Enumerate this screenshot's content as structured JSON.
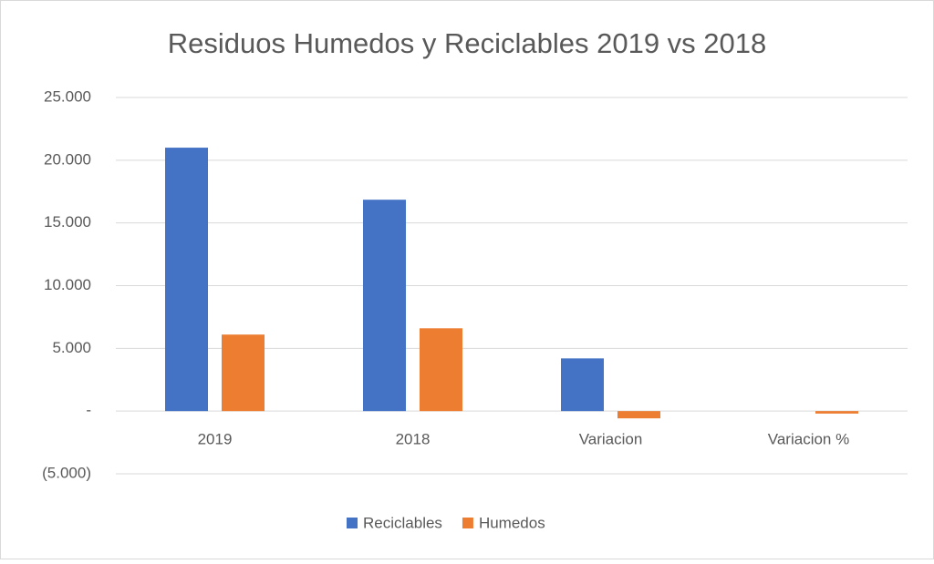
{
  "chart_data": {
    "type": "bar",
    "title": "Residuos Humedos y Reciclables 2019 vs 2018",
    "categories": [
      "2019",
      "2018",
      "Variacion",
      "Variacion %"
    ],
    "series": [
      {
        "name": "Reciclables",
        "color": "#4472c4",
        "values": [
          21000,
          16850,
          4200,
          0
        ]
      },
      {
        "name": "Humedos",
        "color": "#ed7d31",
        "values": [
          6100,
          6600,
          -580,
          -200
        ]
      }
    ],
    "ylim": [
      -5000,
      25000
    ],
    "yticks": [
      {
        "value": -5000,
        "label": "(5.000)"
      },
      {
        "value": 0,
        "label": "-"
      },
      {
        "value": 5000,
        "label": "5.000"
      },
      {
        "value": 10000,
        "label": "10.000"
      },
      {
        "value": 15000,
        "label": "15.000"
      },
      {
        "value": 20000,
        "label": "20.000"
      },
      {
        "value": 25000,
        "label": "25.000"
      }
    ],
    "grid": true,
    "legend": "bottom"
  }
}
